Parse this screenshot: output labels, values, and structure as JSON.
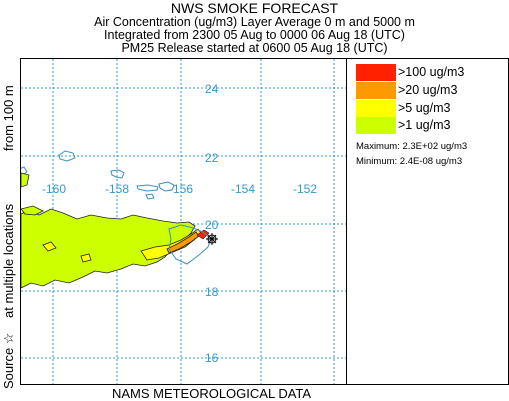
{
  "header": {
    "title": "NWS SMOKE FORECAST",
    "line2": "Air Concentration (ug/m3) Layer Average     0 m and  5000 m",
    "line3": "Integrated from 2300 05 Aug to 0000 06 Aug 18 (UTC)",
    "line4": "PM25 Release started at 0600 05 Aug 18 (UTC)"
  },
  "side_label": {
    "source": "Source ☆",
    "locations": "at multiple locations",
    "height": "from   100 m"
  },
  "footer": "NAMS METEOROLOGICAL DATA",
  "map": {
    "lat_labels": [
      "24",
      "22",
      "20",
      "18",
      "16"
    ],
    "lon_labels": [
      "-160",
      "-158",
      "-156",
      "-154",
      "-152"
    ],
    "grid_color": "#3399cc",
    "coast_color": "#3a8fbf"
  },
  "legend": {
    "items": [
      {
        "label": ">100 ug/m3",
        "color": "#ff2200"
      },
      {
        "label": ">20 ug/m3",
        "color": "#ff9900"
      },
      {
        "label": ">5 ug/m3",
        "color": "#ffff00"
      },
      {
        "label": ">1 ug/m3",
        "color": "#ccff00"
      }
    ],
    "maximum": "Maximum: 2.3E+02 ug/m3",
    "minimum": "Minimum: 2.4E-08 ug/m3"
  }
}
